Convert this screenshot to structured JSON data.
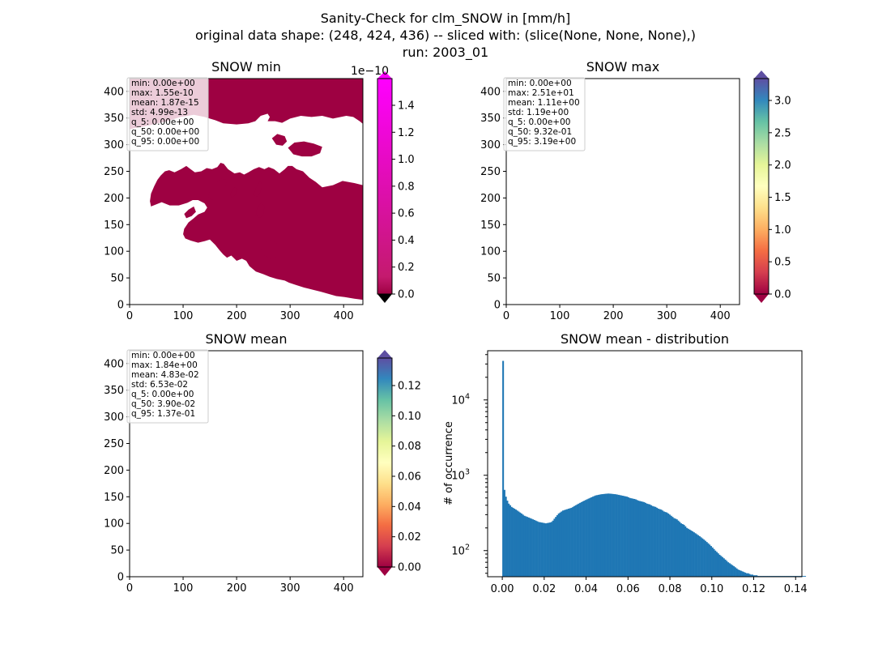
{
  "figure": {
    "title_lines": [
      "Sanity-Check for clm_SNOW in [mm/h]",
      "original data shape: (248, 424, 436) -- sliced with: (slice(None, None, None),)",
      "run: 2003_01"
    ]
  },
  "panels": {
    "min": {
      "title": "SNOW min",
      "stats": [
        "min: 0.00e+00",
        "max: 1.55e-10",
        "mean: 1.87e-15",
        "std: 4.99e-13",
        "q_5: 0.00e+00",
        "q_50: 0.00e+00",
        "q_95: 0.00e+00"
      ],
      "colorbar_ticks": [
        "0.0",
        "0.2",
        "0.4",
        "0.6",
        "0.8",
        "1.0",
        "1.2",
        "1.4"
      ],
      "colorbar_offset": "1e−10"
    },
    "max": {
      "title": "SNOW max",
      "stats": [
        "min: 0.00e+00",
        "max: 2.51e+01",
        "mean: 1.11e+00",
        "std: 1.19e+00",
        "q_5: 0.00e+00",
        "q_50: 9.32e-01",
        "q_95: 3.19e+00"
      ],
      "colorbar_ticks": [
        "0.0",
        "0.5",
        "1.0",
        "1.5",
        "2.0",
        "2.5",
        "3.0"
      ]
    },
    "mean": {
      "title": "SNOW mean",
      "stats": [
        "min: 0.00e+00",
        "max: 1.84e+00",
        "mean: 4.83e-02",
        "std: 6.53e-02",
        "q_5: 0.00e+00",
        "q_50: 3.90e-02",
        "q_95: 1.37e-01"
      ],
      "colorbar_ticks": [
        "0.00",
        "0.02",
        "0.04",
        "0.06",
        "0.08",
        "0.10",
        "0.12"
      ]
    }
  },
  "map_axes": {
    "x_ticks": [
      "0",
      "100",
      "200",
      "300",
      "400"
    ],
    "y_ticks": [
      "0",
      "50",
      "100",
      "150",
      "200",
      "250",
      "300",
      "350",
      "400"
    ]
  },
  "colors": {
    "land_low": "#9e0142",
    "sea": "#ffffff",
    "hist_bar": "#1f77b4",
    "spectral": [
      "#9e0142",
      "#d53e4f",
      "#f46d43",
      "#fdae61",
      "#fee08b",
      "#ffffbf",
      "#e6f598",
      "#abdda4",
      "#66c2a5",
      "#3288bd",
      "#5e4fa2"
    ]
  },
  "chart_data": {
    "type": "bar",
    "title": "SNOW mean - distribution",
    "xlabel": "",
    "ylabel": "# of occurrence",
    "yscale": "log",
    "xlim": [
      -0.007,
      0.143
    ],
    "ylim": [
      45,
      45000
    ],
    "x_ticks": [
      "0.00",
      "0.02",
      "0.04",
      "0.06",
      "0.08",
      "0.10",
      "0.12",
      "0.14"
    ],
    "y_ticks": [
      {
        "base": "10",
        "exp": "2",
        "value": 100
      },
      {
        "base": "10",
        "exp": "3",
        "value": 1000
      },
      {
        "base": "10",
        "exp": "4",
        "value": 10000
      }
    ],
    "bin_start": 0.0,
    "bin_width": 0.00068,
    "counts": [
      33000,
      640,
      520,
      460,
      420,
      400,
      380,
      370,
      360,
      350,
      340,
      330,
      320,
      310,
      300,
      290,
      285,
      280,
      275,
      270,
      265,
      260,
      255,
      250,
      245,
      240,
      238,
      236,
      234,
      232,
      230,
      232,
      234,
      236,
      240,
      250,
      265,
      280,
      295,
      310,
      320,
      330,
      340,
      345,
      350,
      355,
      360,
      365,
      370,
      380,
      390,
      400,
      410,
      420,
      430,
      440,
      450,
      460,
      470,
      480,
      490,
      500,
      510,
      520,
      530,
      540,
      545,
      550,
      555,
      560,
      562,
      565,
      568,
      570,
      572,
      570,
      568,
      565,
      562,
      560,
      555,
      550,
      545,
      540,
      535,
      530,
      525,
      520,
      510,
      500,
      495,
      490,
      485,
      480,
      470,
      460,
      455,
      450,
      445,
      440,
      430,
      420,
      415,
      410,
      400,
      390,
      385,
      380,
      370,
      360,
      355,
      350,
      340,
      330,
      325,
      320,
      310,
      300,
      290,
      280,
      270,
      265,
      260,
      250,
      240,
      230,
      225,
      220,
      210,
      200,
      195,
      190,
      185,
      180,
      175,
      170,
      165,
      160,
      155,
      150,
      145,
      140,
      135,
      130,
      125,
      120,
      115,
      110,
      105,
      100,
      96,
      92,
      88,
      85,
      82,
      79,
      76,
      73,
      70,
      68,
      66,
      64,
      62,
      60,
      58,
      56,
      55,
      54,
      53,
      52,
      51,
      50,
      50,
      49,
      48,
      48,
      47,
      47,
      47,
      46,
      46,
      46,
      46,
      46,
      46,
      46,
      46,
      46,
      46,
      46,
      46,
      46,
      46,
      46,
      46,
      46,
      46,
      46,
      46,
      46,
      46,
      46,
      46,
      46,
      46,
      46,
      46,
      46,
      46,
      46,
      46,
      46,
      46
    ]
  }
}
